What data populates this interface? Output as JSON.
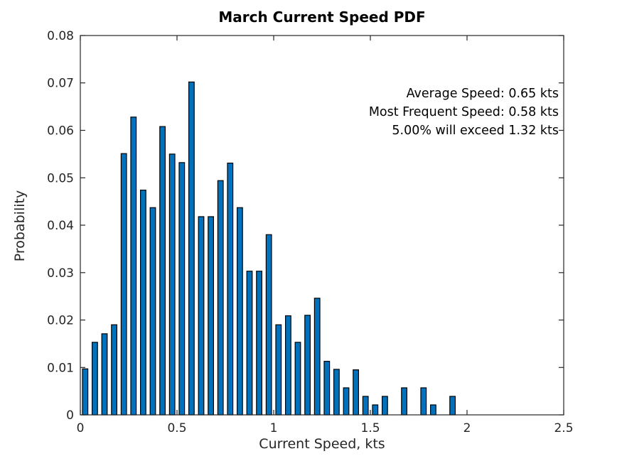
{
  "colors": {
    "bar_fill": "#0072BD",
    "bar_edge": "#000000",
    "axis": "#262626",
    "tick_label": "#262626",
    "text": "#000000",
    "background": "#FFFFFF"
  },
  "annotation": {
    "lines": [
      "Average Speed: 0.65 kts",
      "Most Frequent Speed: 0.58 kts",
      "5.00% will exceed 1.32 kts"
    ]
  },
  "chart_data": {
    "type": "bar",
    "title": "March Current Speed PDF",
    "xlabel": "Current Speed, kts",
    "ylabel": "Probability",
    "xlim": [
      0,
      2.5
    ],
    "ylim": [
      0,
      0.08
    ],
    "grid": false,
    "legend": "none",
    "bin_width": 0.05,
    "xticks": [
      0,
      0.5,
      1,
      1.5,
      2,
      2.5
    ],
    "xtick_labels": [
      "0",
      "0.5",
      "1",
      "1.5",
      "2",
      "2.5"
    ],
    "yticks": [
      0,
      0.01,
      0.02,
      0.03,
      0.04,
      0.05,
      0.06,
      0.07,
      0.08
    ],
    "ytick_labels": [
      "0",
      "0.01",
      "0.02",
      "0.03",
      "0.04",
      "0.05",
      "0.06",
      "0.07",
      "0.08"
    ],
    "x": [
      0.025,
      0.075,
      0.125,
      0.175,
      0.225,
      0.275,
      0.325,
      0.375,
      0.425,
      0.475,
      0.525,
      0.575,
      0.625,
      0.675,
      0.725,
      0.775,
      0.825,
      0.875,
      0.925,
      0.975,
      1.025,
      1.075,
      1.125,
      1.175,
      1.225,
      1.275,
      1.325,
      1.375,
      1.425,
      1.475,
      1.525,
      1.575,
      1.625,
      1.675,
      1.725,
      1.775,
      1.825,
      1.875,
      1.925
    ],
    "values": [
      0.0097,
      0.0153,
      0.0171,
      0.019,
      0.0551,
      0.0628,
      0.0474,
      0.0437,
      0.0608,
      0.055,
      0.0532,
      0.0702,
      0.0418,
      0.0418,
      0.0494,
      0.0531,
      0.0437,
      0.0303,
      0.0303,
      0.038,
      0.019,
      0.0209,
      0.0153,
      0.021,
      0.0246,
      0.0113,
      0.0096,
      0.0057,
      0.0095,
      0.0039,
      0.0021,
      0.0039,
      0.0,
      0.0057,
      0.0,
      0.0057,
      0.0021,
      0.0,
      0.0039
    ],
    "annotations": [
      "Average Speed: 0.65 kts",
      "Most Frequent Speed: 0.58 kts",
      "5.00% will exceed 1.32 kts"
    ]
  }
}
